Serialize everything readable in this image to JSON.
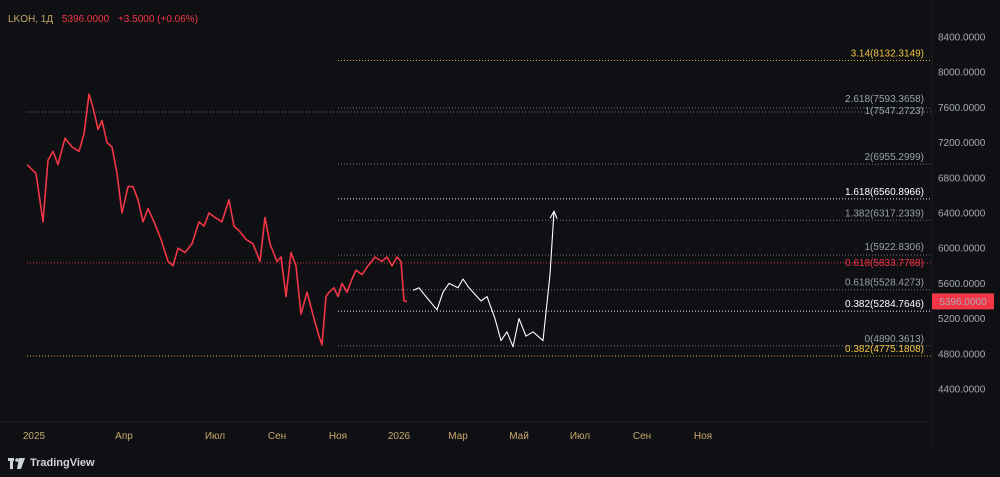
{
  "header": {
    "symbol": "LKOH, 1Д",
    "price": "5396.0000",
    "change": "+3.5000 (+0.06%)"
  },
  "brand": {
    "name": "TradingView"
  },
  "colors": {
    "background": "#0f1014",
    "price_line": "#f23645",
    "projection": "#ffffff",
    "level_gold": "#f4c542",
    "level_red": "#f23645",
    "level_white": "#ffffff",
    "level_grey": "#9aa0a6",
    "axis_text": "#a7aab3",
    "month_text": "#c8a86a"
  },
  "chart_data": {
    "type": "line",
    "title": "",
    "ylim": [
      4200,
      8500
    ],
    "y_ticks": [
      "8400.0000",
      "8000.0000",
      "7600.0000",
      "7200.0000",
      "6800.0000",
      "6400.0000",
      "6000.0000",
      "5600.0000",
      "5200.0000",
      "4800.0000",
      "4400.0000"
    ],
    "y_tick_values": [
      8400,
      8000,
      7600,
      7200,
      6800,
      6400,
      6000,
      5600,
      5200,
      4800,
      4400
    ],
    "x_ticks": [
      "2025",
      "Апр",
      "Июл",
      "Сен",
      "Ноя",
      "2026",
      "Мар",
      "Май",
      "Июл",
      "Сен",
      "Ноя"
    ],
    "x_tick_dates": [
      "2025-01-01",
      "2025-04-01",
      "2025-07-01",
      "2025-09-01",
      "2025-11-01",
      "2026-01-01",
      "2026-03-01",
      "2026-05-01",
      "2026-07-01",
      "2026-09-01",
      "2026-11-01"
    ],
    "last_price_label": "5396.0000",
    "last_price": 5396,
    "series": [
      {
        "x": [
          "2024-12-25",
          "2025-01-03",
          "2025-01-10",
          "2025-01-15",
          "2025-01-20",
          "2025-01-25",
          "2025-02-01",
          "2025-02-08",
          "2025-02-15",
          "2025-02-20",
          "2025-02-25",
          "2025-03-01",
          "2025-03-06",
          "2025-03-10",
          "2025-03-15",
          "2025-03-20",
          "2025-03-25",
          "2025-03-30",
          "2025-04-05",
          "2025-04-10",
          "2025-04-15",
          "2025-04-20",
          "2025-04-25",
          "2025-05-01",
          "2025-05-08",
          "2025-05-15",
          "2025-05-20",
          "2025-05-25",
          "2025-06-01",
          "2025-06-08",
          "2025-06-15",
          "2025-06-20",
          "2025-06-25",
          "2025-07-01",
          "2025-07-08",
          "2025-07-15",
          "2025-07-20",
          "2025-07-25",
          "2025-08-01",
          "2025-08-08",
          "2025-08-15",
          "2025-08-20",
          "2025-08-25",
          "2025-09-01",
          "2025-09-05",
          "2025-09-10",
          "2025-09-15",
          "2025-09-20",
          "2025-09-25",
          "2025-10-01",
          "2025-10-08",
          "2025-10-13",
          "2025-10-16",
          "2025-10-20",
          "2025-10-23",
          "2025-10-28",
          "2025-11-01",
          "2025-11-05",
          "2025-11-10",
          "2025-11-15",
          "2025-11-19",
          "2025-11-25",
          "2025-12-01",
          "2025-12-08",
          "2025-12-15",
          "2025-12-20",
          "2025-12-25",
          "2025-12-30",
          "2026-01-03",
          "2026-01-06",
          "2026-01-09"
        ],
        "y": [
          6950,
          6850,
          6300,
          7000,
          7100,
          6950,
          7250,
          7150,
          7100,
          7300,
          7750,
          7600,
          7350,
          7450,
          7200,
          7150,
          6850,
          6400,
          6700,
          6700,
          6550,
          6300,
          6450,
          6300,
          6100,
          5850,
          5800,
          6000,
          5950,
          6050,
          6300,
          6250,
          6400,
          6350,
          6300,
          6550,
          6250,
          6200,
          6100,
          6050,
          5850,
          6350,
          6050,
          5850,
          5900,
          5450,
          5950,
          5800,
          5250,
          5500,
          5200,
          5000,
          4900,
          5450,
          5500,
          5550,
          5450,
          5600,
          5500,
          5650,
          5750,
          5700,
          5800,
          5900,
          5850,
          5900,
          5800,
          5900,
          5850,
          5400,
          5396
        ]
      },
      {
        "x": [
          "2026-01-15",
          "2026-01-21",
          "2026-01-28",
          "2026-02-08",
          "2026-02-14",
          "2026-02-20",
          "2026-03-01",
          "2026-03-06",
          "2026-03-12",
          "2026-03-24",
          "2026-03-30",
          "2026-04-07",
          "2026-04-13",
          "2026-04-19",
          "2026-04-25",
          "2026-05-01",
          "2026-05-08",
          "2026-05-15",
          "2026-05-25",
          "2026-06-01",
          "2026-06-05"
        ],
        "y": [
          5520,
          5550,
          5450,
          5300,
          5500,
          5600,
          5550,
          5650,
          5550,
          5400,
          5450,
          5200,
          4950,
          5050,
          4880,
          5200,
          5000,
          5050,
          4950,
          5700,
          6420
        ]
      }
    ],
    "levels": [
      {
        "label": "3.14(8132.3149)",
        "value": 8132.3149,
        "color": "gold",
        "start": "2025-11-01"
      },
      {
        "label": "2.618(7593.3658)",
        "value": 7593.3658,
        "color": "grey",
        "start": "2025-11-01"
      },
      {
        "label": "1(7547.2723)",
        "value": 7547.2723,
        "color": "grey",
        "start": "2024-12-25"
      },
      {
        "label": "2(6955.2999)",
        "value": 6955.2999,
        "color": "grey",
        "start": "2025-11-01"
      },
      {
        "label": "1.618(6560.8966)",
        "value": 6560.8966,
        "color": "white",
        "start": "2025-11-01"
      },
      {
        "label": "1.382(6317.2339)",
        "value": 6317.2339,
        "color": "grey",
        "start": "2025-11-01"
      },
      {
        "label": "1(5922.8306)",
        "value": 5922.8306,
        "color": "grey",
        "start": "2025-11-01"
      },
      {
        "label": "0.618(5833.7788)",
        "value": 5833.7788,
        "color": "red",
        "start": "2024-12-25"
      },
      {
        "label": "0.618(5528.4273)",
        "value": 5528.4273,
        "color": "grey",
        "start": "2025-11-01"
      },
      {
        "label": "0.382(5284.7646)",
        "value": 5284.7646,
        "color": "white",
        "start": "2025-11-01"
      },
      {
        "label": "0(4890.3613)",
        "value": 4890.3613,
        "color": "grey",
        "start": "2025-11-01"
      },
      {
        "label": "0.382(4775.1808)",
        "value": 4775.1808,
        "color": "gold",
        "start": "2024-12-25"
      }
    ]
  }
}
